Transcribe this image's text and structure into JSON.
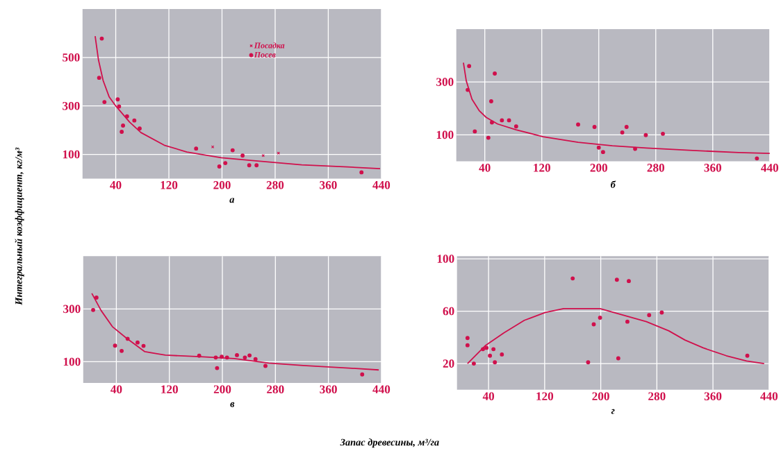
{
  "chart_data": [
    {
      "type": "scatter",
      "xlabel": "а",
      "ylabel": "Интегральный коэффициент, кг/м³",
      "xlim": [
        -10,
        440
      ],
      "xticks": [
        40,
        120,
        200,
        280,
        360,
        440
      ],
      "ylim": [
        0,
        700
      ],
      "yticks": [
        100,
        300,
        500
      ],
      "grid": true,
      "legend": "top",
      "series": [
        {
          "name": "Посадка",
          "marker": "cross",
          "color": "#d0104c",
          "x": [
            186,
            262,
            285
          ],
          "values": [
            131,
            95,
            105
          ]
        },
        {
          "name": "Посев",
          "marker": "circle",
          "color": "#d0104c",
          "x": [
            19,
            15,
            23,
            43,
            45,
            57,
            51,
            49,
            68,
            76,
            161,
            196,
            205,
            216,
            231,
            241,
            252,
            410
          ],
          "values": [
            578,
            416,
            316,
            327,
            298,
            257,
            219,
            193,
            240,
            207,
            124,
            50,
            64,
            117,
            95,
            55,
            55,
            26
          ]
        },
        {
          "type": "line",
          "marker": "none",
          "color": "#d0104c",
          "x": [
            9,
            14,
            21,
            30,
            40,
            61,
            78,
            113,
            147,
            199,
            251,
            320,
            389,
            438
          ],
          "values": [
            588,
            490,
            405,
            338,
            300,
            233,
            190,
            138,
            110,
            86,
            73,
            57,
            48,
            41
          ]
        }
      ]
    },
    {
      "type": "scatter",
      "xlabel": "б",
      "xlim": [
        0,
        440
      ],
      "xticks": [
        40,
        120,
        200,
        280,
        360,
        440
      ],
      "ylim": [
        0,
        500
      ],
      "yticks": [
        100,
        300
      ],
      "grid": true,
      "series": [
        {
          "marker": "circle",
          "color": "#d0104c",
          "x": [
            18,
            16,
            26,
            49,
            54,
            45,
            50,
            64,
            74,
            84,
            171,
            194,
            200,
            206,
            233,
            239,
            251,
            266,
            290,
            422
          ],
          "values": [
            360,
            270,
            113,
            227,
            332,
            89,
            147,
            155,
            155,
            132,
            139,
            130,
            52,
            35,
            109,
            130,
            47,
            99,
            104,
            11
          ]
        },
        {
          "type": "line",
          "marker": "none",
          "color": "#d0104c",
          "x": [
            10,
            14,
            22,
            32,
            42,
            58,
            84,
            122,
            171,
            219,
            267,
            332,
            396,
            440
          ],
          "values": [
            373,
            304,
            235,
            192,
            166,
            141,
            119,
            93,
            72,
            59,
            50,
            41,
            33,
            30
          ]
        }
      ]
    },
    {
      "type": "scatter",
      "xlabel": "в",
      "annotations": [
        "Запас древесины, м³/га"
      ],
      "xlim": [
        -10,
        440
      ],
      "xticks": [
        40,
        120,
        200,
        280,
        360,
        440
      ],
      "ylim": [
        20,
        500
      ],
      "yticks": [
        100,
        300
      ],
      "grid": true,
      "series": [
        {
          "marker": "circle",
          "color": "#d0104c",
          "x": [
            5,
            10,
            38,
            48,
            57,
            72,
            81,
            165,
            192,
            190,
            199,
            207,
            222,
            234,
            241,
            250,
            265,
            411
          ],
          "values": [
            296,
            343,
            161,
            141,
            187,
            173,
            160,
            123,
            76,
            116,
            119,
            116,
            125,
            116,
            124,
            110,
            84,
            52
          ]
        },
        {
          "type": "line",
          "marker": "none",
          "color": "#d0104c",
          "x": [
            3,
            17,
            34,
            55,
            83,
            114,
            166,
            218,
            270,
            322,
            391,
            436
          ],
          "values": [
            359,
            294,
            233,
            190,
            138,
            125,
            119,
            112,
            95,
            86,
            76,
            69
          ]
        }
      ]
    },
    {
      "type": "scatter",
      "xlabel": "г",
      "xlim": [
        -5,
        440
      ],
      "xticks": [
        40,
        120,
        200,
        280,
        360,
        440
      ],
      "ylim": [
        0,
        102
      ],
      "yticks": [
        20,
        60,
        100
      ],
      "grid": true,
      "series": [
        {
          "marker": "circle",
          "color": "#d0104c",
          "x": [
            10,
            10,
            19,
            32,
            37,
            47,
            42,
            49,
            59,
            160,
            182,
            190,
            199,
            223,
            225,
            240,
            238,
            269,
            287,
            409
          ],
          "values": [
            39.5,
            34,
            20,
            31,
            32,
            31,
            26,
            21,
            27,
            85,
            21,
            50,
            55,
            84,
            24,
            83,
            52,
            57,
            59,
            26
          ]
        },
        {
          "type": "line",
          "marker": "none",
          "color": "#d0104c",
          "x": [
            10,
            36,
            62,
            91,
            121,
            147,
            199,
            232,
            265,
            297,
            320,
            346,
            379,
            408,
            433
          ],
          "values": [
            20,
            34,
            43.5,
            53,
            59,
            62,
            62,
            57,
            52,
            45,
            38,
            32,
            26,
            22,
            20
          ]
        }
      ]
    }
  ]
}
